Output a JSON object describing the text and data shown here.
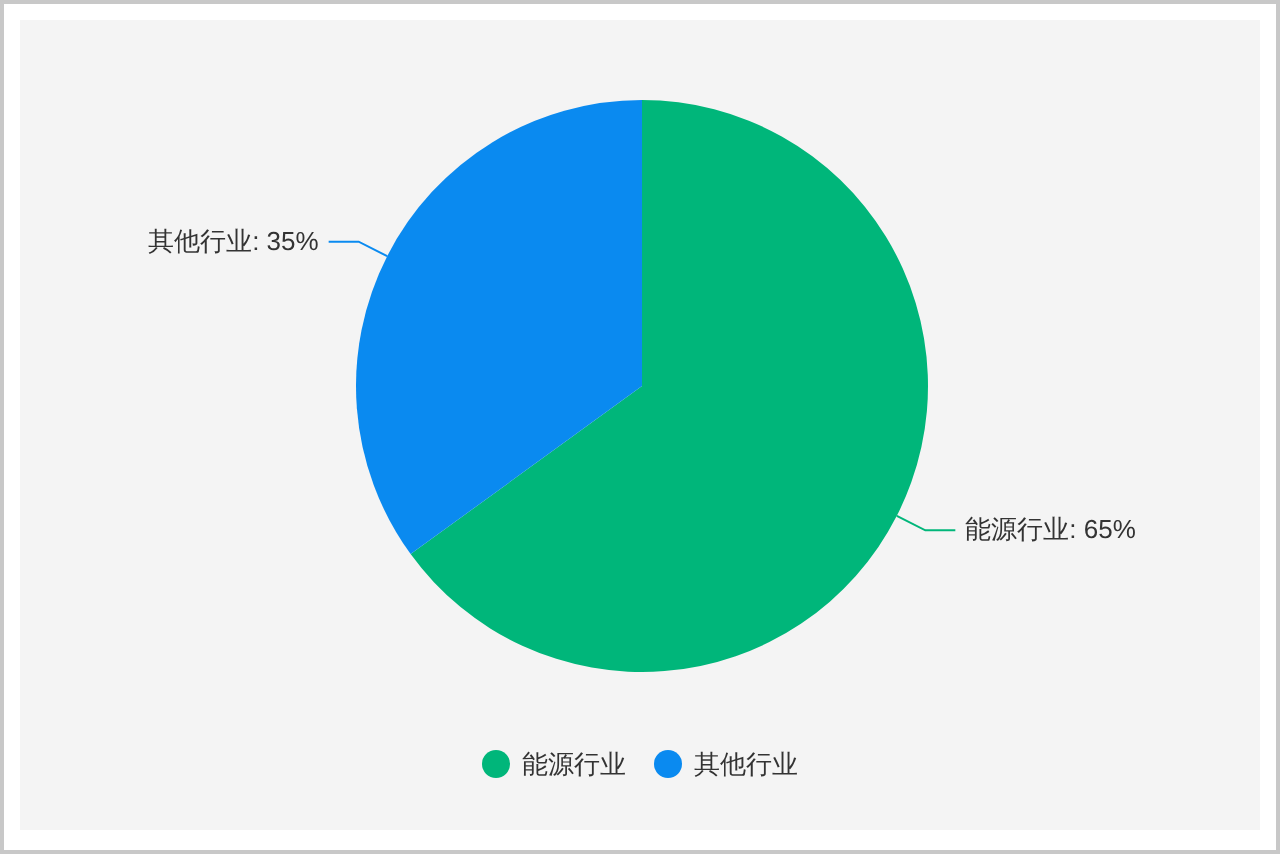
{
  "chart_data": {
    "type": "pie",
    "categories": [
      "能源行业",
      "其他行业"
    ],
    "values": [
      65,
      35
    ],
    "value_labels": [
      "能源行业: 65%",
      "其他行业: 35%"
    ],
    "colors": [
      "#00b67a",
      "#0a8af0"
    ],
    "legend": "bottom"
  }
}
